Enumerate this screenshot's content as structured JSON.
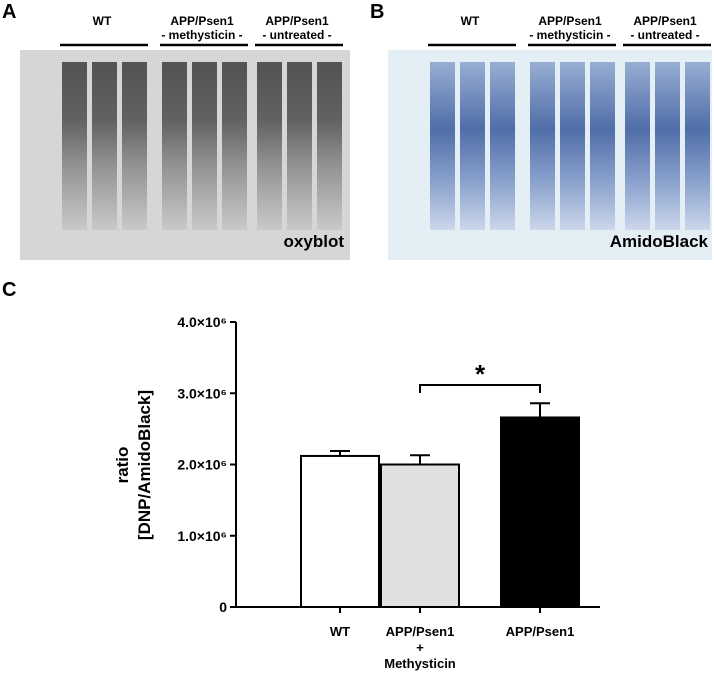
{
  "panels": {
    "a": {
      "label": "A",
      "groups": [
        "WT",
        "APP/Psen1\n- methysticin -",
        "APP/Psen1\n- untreated -"
      ],
      "caption": "oxyblot"
    },
    "b": {
      "label": "B",
      "groups": [
        "WT",
        "APP/Psen1\n- methysticin -",
        "APP/Psen1\n- untreated -"
      ],
      "caption": "AmidoBlack"
    }
  },
  "chart_data": {
    "type": "bar",
    "panel_label": "C",
    "y_label": "ratio\n[DNP/AmidoBlack]",
    "categories": [
      "WT",
      "APP/Psen1\n+\nMethysticin",
      "APP/Psen1"
    ],
    "values": [
      2120000,
      2000000,
      2660000
    ],
    "errors": [
      70000,
      130000,
      200000
    ],
    "colors": [
      "#ffffff",
      "#e0e0e0",
      "#000000"
    ],
    "ylim": [
      0,
      4000000
    ],
    "yticks": [
      0,
      {
        "value": 1000000,
        "label": "1.0×10⁶"
      },
      {
        "value": 2000000,
        "label": "2.0×10⁶"
      },
      {
        "value": 3000000,
        "label": "3.0×10⁶"
      },
      {
        "value": 4000000,
        "label": "4.0×10⁶"
      }
    ],
    "annotation": "*"
  }
}
